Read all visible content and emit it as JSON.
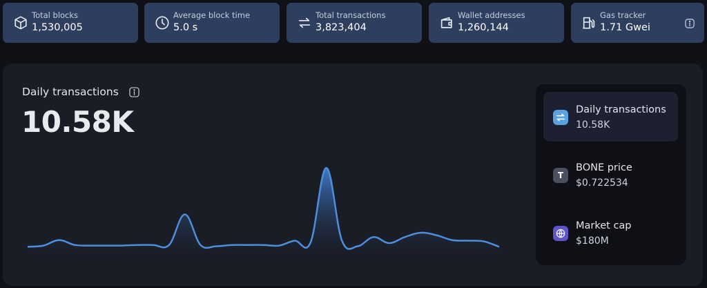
{
  "stats": [
    {
      "icon": "cube-icon",
      "label": "Total blocks",
      "value": "1,530,005"
    },
    {
      "icon": "clock-icon",
      "label": "Average block time",
      "value": "5.0 s"
    },
    {
      "icon": "transfer-arrows-icon",
      "label": "Total transactions",
      "value": "3,823,404"
    },
    {
      "icon": "wallet-icon",
      "label": "Wallet addresses",
      "value": "1,260,144"
    },
    {
      "icon": "gas-pump-icon",
      "label": "Gas tracker",
      "value": "1.71 Gwei"
    }
  ],
  "chart_header": {
    "title": "Daily transactions",
    "value": "10.58K"
  },
  "side_items": [
    {
      "icon": "transfer-arrows-icon",
      "label": "Daily transactions",
      "value": "10.58K",
      "active": true,
      "icon_color": "#5aa3e0"
    },
    {
      "icon": "token-t-icon",
      "label": "BONE price",
      "value": "$0.722534",
      "active": false,
      "icon_color": "#4a5062"
    },
    {
      "icon": "globe-icon",
      "label": "Market cap",
      "value": "$180M",
      "active": false,
      "icon_color": "#5e55c9"
    }
  ],
  "colors": {
    "card_bg": "#2e3e5e",
    "panel_bg": "#1a1c26",
    "line": "#4d8fdc"
  },
  "chart_data": {
    "type": "area",
    "title": "Daily transactions",
    "x": [
      0,
      1,
      2,
      3,
      4,
      5,
      6,
      7,
      8,
      9,
      10,
      11,
      12,
      13,
      14,
      15,
      16,
      17,
      18,
      19,
      20,
      21,
      22,
      23,
      24,
      25,
      26,
      27,
      28,
      29,
      30
    ],
    "values": [
      0.3,
      0.5,
      1.4,
      0.6,
      0.5,
      0.5,
      0.5,
      0.6,
      0.6,
      0.6,
      5.6,
      0.6,
      0.4,
      0.6,
      0.6,
      0.6,
      0.5,
      1.3,
      1.0,
      13.2,
      1.3,
      0.4,
      1.9,
      0.9,
      1.9,
      2.6,
      2.2,
      1.4,
      1.3,
      1.2,
      0.3
    ],
    "ylim": [
      0,
      14
    ],
    "xlabel": "",
    "ylabel": "",
    "grid": false,
    "legend": "none"
  }
}
